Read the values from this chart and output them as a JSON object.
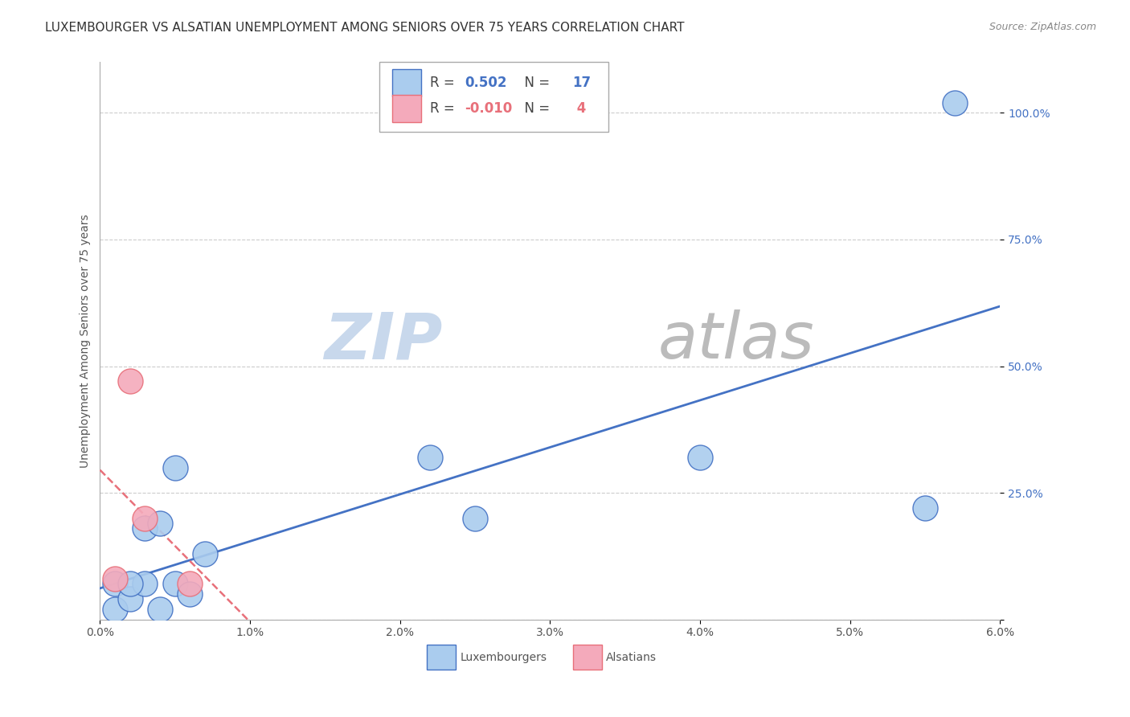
{
  "title": "LUXEMBOURGER VS ALSATIAN UNEMPLOYMENT AMONG SENIORS OVER 75 YEARS CORRELATION CHART",
  "source": "Source: ZipAtlas.com",
  "ylabel": "Unemployment Among Seniors over 75 years",
  "xlim": [
    0.0,
    0.06
  ],
  "ylim": [
    0.0,
    1.1
  ],
  "yticks": [
    0.0,
    0.25,
    0.5,
    0.75,
    1.0
  ],
  "ytick_labels": [
    "",
    "25.0%",
    "50.0%",
    "75.0%",
    "100.0%"
  ],
  "xtick_labels": [
    "0.0%",
    "1.0%",
    "2.0%",
    "3.0%",
    "4.0%",
    "5.0%",
    "6.0%"
  ],
  "xticks": [
    0.0,
    0.01,
    0.02,
    0.03,
    0.04,
    0.05,
    0.06
  ],
  "blue_points_x": [
    0.001,
    0.001,
    0.002,
    0.003,
    0.003,
    0.004,
    0.004,
    0.005,
    0.005,
    0.006,
    0.007,
    0.022,
    0.025,
    0.04,
    0.055,
    0.057,
    0.002
  ],
  "blue_points_y": [
    0.02,
    0.07,
    0.04,
    0.18,
    0.07,
    0.19,
    0.02,
    0.3,
    0.07,
    0.05,
    0.13,
    0.32,
    0.2,
    0.32,
    0.22,
    1.02,
    0.07
  ],
  "pink_points_x": [
    0.001,
    0.002,
    0.003,
    0.006
  ],
  "pink_points_y": [
    0.08,
    0.47,
    0.2,
    0.07
  ],
  "blue_R": 0.502,
  "blue_N": 17,
  "pink_R": -0.01,
  "pink_N": 4,
  "blue_line_color": "#4472C4",
  "pink_line_color": "#E8707A",
  "blue_scatter_facecolor": "#AACCEE",
  "pink_scatter_facecolor": "#F4AABB",
  "blue_scatter_edge": "#4472C4",
  "pink_scatter_edge": "#E8707A",
  "grid_color": "#CCCCCC",
  "background_color": "#FFFFFF",
  "watermark_zip_color": "#D8E4F0",
  "watermark_atlas_color": "#CCCCCC",
  "title_fontsize": 11,
  "axis_label_fontsize": 10,
  "tick_fontsize": 10
}
